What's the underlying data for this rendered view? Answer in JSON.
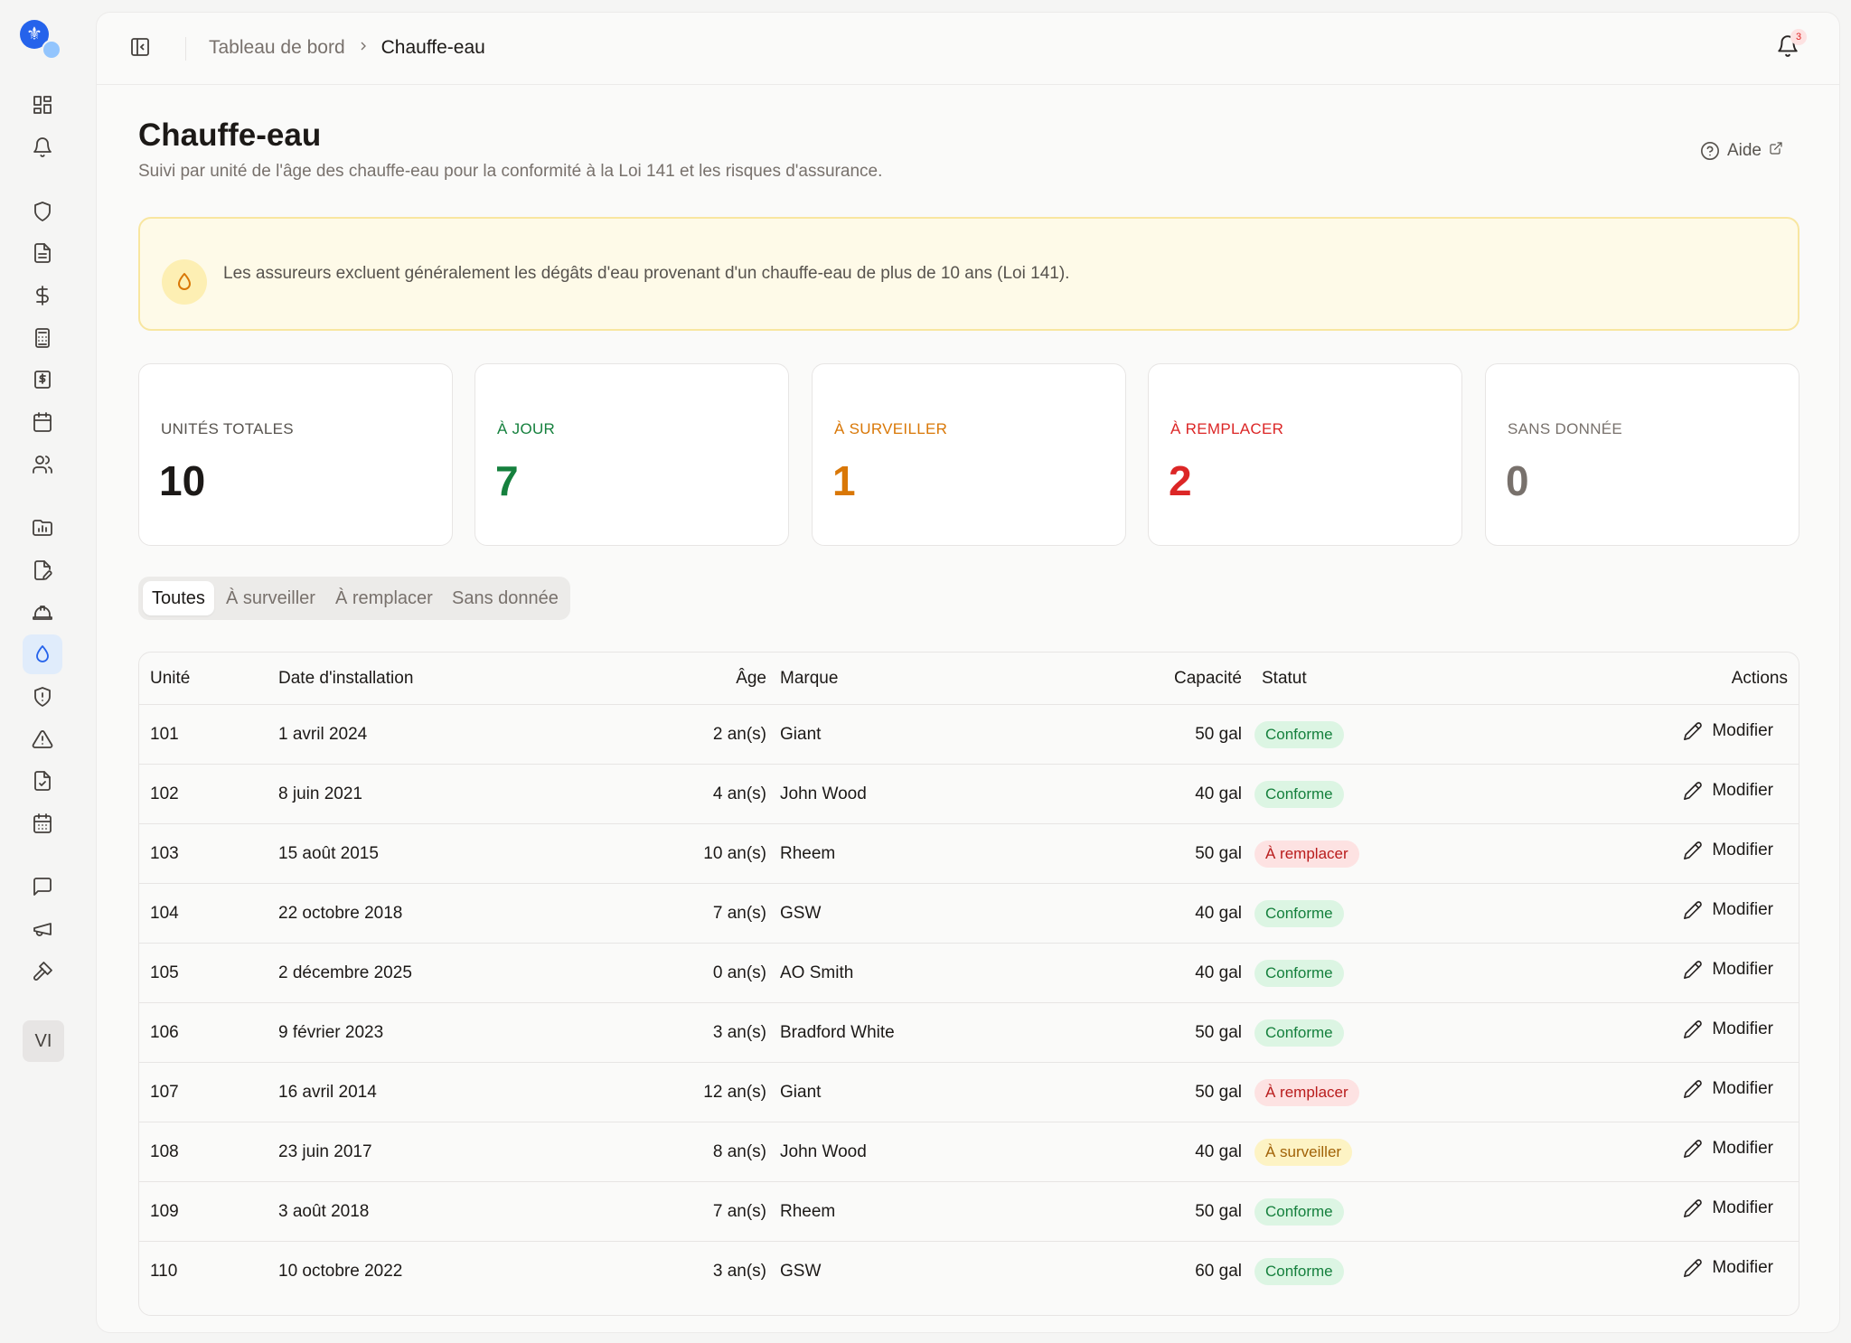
{
  "app": {
    "avatar_initials": "VI"
  },
  "header": {
    "breadcrumb": {
      "home": "Tableau de bord",
      "current": "Chauffe-eau"
    },
    "notifications_count": "3"
  },
  "page": {
    "title": "Chauffe-eau",
    "subtitle": "Suivi par unité de l'âge des chauffe-eau pour la conformité à la Loi 141 et les risques d'assurance.",
    "help_label": "Aide"
  },
  "alert": {
    "text": "Les assureurs excluent généralement les dégâts d'eau provenant d'un chauffe-eau de plus de 10 ans (Loi 141)."
  },
  "stats": [
    {
      "label": "UNITÉS TOTALES",
      "value": "10",
      "color": "#1c1917",
      "label_color": "#57534e"
    },
    {
      "label": "À JOUR",
      "value": "7",
      "color": "#15803d",
      "label_color": "#15803d"
    },
    {
      "label": "À SURVEILLER",
      "value": "1",
      "color": "#d97706",
      "label_color": "#d97706"
    },
    {
      "label": "À REMPLACER",
      "value": "2",
      "color": "#dc2626",
      "label_color": "#dc2626"
    },
    {
      "label": "SANS DONNÉE",
      "value": "0",
      "color": "#78716c",
      "label_color": "#78716c"
    }
  ],
  "filters": {
    "tabs": [
      "Toutes",
      "À surveiller",
      "À remplacer",
      "Sans donnée"
    ],
    "active": "Toutes"
  },
  "table": {
    "columns": {
      "unit": "Unité",
      "install_date": "Date d'installation",
      "age": "Âge",
      "brand": "Marque",
      "capacity": "Capacité",
      "status": "Statut",
      "actions": "Actions"
    },
    "action_label": "Modifier",
    "rows": [
      {
        "unit": "101",
        "date": "1 avril 2024",
        "age": "2 an(s)",
        "brand": "Giant",
        "capacity": "50 gal",
        "status": "Conforme",
        "kind": "ok"
      },
      {
        "unit": "102",
        "date": "8 juin 2021",
        "age": "4 an(s)",
        "brand": "John Wood",
        "capacity": "40 gal",
        "status": "Conforme",
        "kind": "ok"
      },
      {
        "unit": "103",
        "date": "15 août 2015",
        "age": "10 an(s)",
        "brand": "Rheem",
        "capacity": "50 gal",
        "status": "À remplacer",
        "kind": "bad"
      },
      {
        "unit": "104",
        "date": "22 octobre 2018",
        "age": "7 an(s)",
        "brand": "GSW",
        "capacity": "40 gal",
        "status": "Conforme",
        "kind": "ok"
      },
      {
        "unit": "105",
        "date": "2 décembre 2025",
        "age": "0 an(s)",
        "brand": "AO Smith",
        "capacity": "40 gal",
        "status": "Conforme",
        "kind": "ok"
      },
      {
        "unit": "106",
        "date": "9 février 2023",
        "age": "3 an(s)",
        "brand": "Bradford White",
        "capacity": "50 gal",
        "status": "Conforme",
        "kind": "ok"
      },
      {
        "unit": "107",
        "date": "16 avril 2014",
        "age": "12 an(s)",
        "brand": "Giant",
        "capacity": "50 gal",
        "status": "À remplacer",
        "kind": "bad"
      },
      {
        "unit": "108",
        "date": "23 juin 2017",
        "age": "8 an(s)",
        "brand": "John Wood",
        "capacity": "40 gal",
        "status": "À surveiller",
        "kind": "warn"
      },
      {
        "unit": "109",
        "date": "3 août 2018",
        "age": "7 an(s)",
        "brand": "Rheem",
        "capacity": "50 gal",
        "status": "Conforme",
        "kind": "ok"
      },
      {
        "unit": "110",
        "date": "10 octobre 2022",
        "age": "3 an(s)",
        "brand": "GSW",
        "capacity": "60 gal",
        "status": "Conforme",
        "kind": "ok"
      }
    ]
  }
}
